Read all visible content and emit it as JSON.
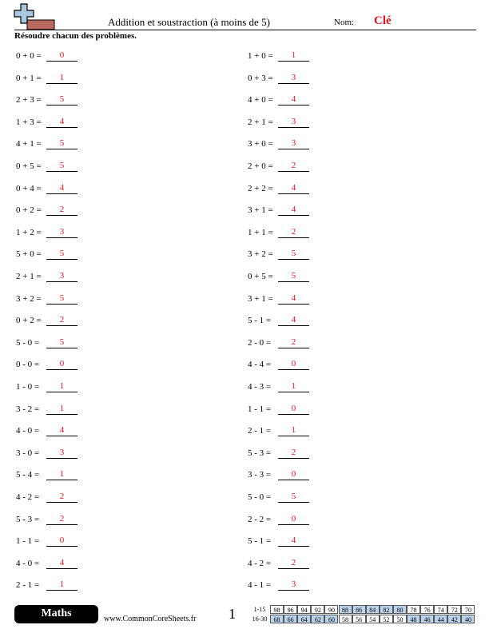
{
  "header": {
    "title": "Addition et soustraction (à moins de 5)",
    "name_label": "Nom:",
    "name_value": "Clé"
  },
  "instructions": "Résoudre chacun des problèmes.",
  "columns": [
    [
      {
        "question": "0 + 0 =",
        "answer": "0"
      },
      {
        "question": "0 + 1 =",
        "answer": "1"
      },
      {
        "question": "2 + 3 =",
        "answer": "5"
      },
      {
        "question": "1 + 3 =",
        "answer": "4"
      },
      {
        "question": "4 + 1 =",
        "answer": "5"
      },
      {
        "question": "0 + 5 =",
        "answer": "5"
      },
      {
        "question": "0 + 4 =",
        "answer": "4"
      },
      {
        "question": "0 + 2 =",
        "answer": "2"
      },
      {
        "question": "1 + 2 =",
        "answer": "3"
      },
      {
        "question": "5 + 0 =",
        "answer": "5"
      },
      {
        "question": "2 + 1 =",
        "answer": "3"
      },
      {
        "question": "3 + 2 =",
        "answer": "5"
      },
      {
        "question": "0 + 2 =",
        "answer": "2"
      },
      {
        "question": "5 - 0 =",
        "answer": "5"
      },
      {
        "question": "0 - 0 =",
        "answer": "0"
      },
      {
        "question": "1 - 0 =",
        "answer": "1"
      },
      {
        "question": "3 - 2 =",
        "answer": "1"
      },
      {
        "question": "4 - 0 =",
        "answer": "4"
      },
      {
        "question": "3 - 0 =",
        "answer": "3"
      },
      {
        "question": "5 - 4 =",
        "answer": "1"
      },
      {
        "question": "4 - 2 =",
        "answer": "2"
      },
      {
        "question": "5 - 3 =",
        "answer": "2"
      },
      {
        "question": "1 - 1 =",
        "answer": "0"
      },
      {
        "question": "4 - 0 =",
        "answer": "4"
      },
      {
        "question": "2 - 1 =",
        "answer": "1"
      }
    ],
    [
      {
        "question": "1 + 0 =",
        "answer": "1"
      },
      {
        "question": "0 + 3 =",
        "answer": "3"
      },
      {
        "question": "4 + 0 =",
        "answer": "4"
      },
      {
        "question": "2 + 1 =",
        "answer": "3"
      },
      {
        "question": "3 + 0 =",
        "answer": "3"
      },
      {
        "question": "2 + 0 =",
        "answer": "2"
      },
      {
        "question": "2 + 2 =",
        "answer": "4"
      },
      {
        "question": "3 + 1 =",
        "answer": "4"
      },
      {
        "question": "1 + 1 =",
        "answer": "2"
      },
      {
        "question": "3 + 2 =",
        "answer": "5"
      },
      {
        "question": "0 + 5 =",
        "answer": "5"
      },
      {
        "question": "3 + 1 =",
        "answer": "4"
      },
      {
        "question": "5 - 1 =",
        "answer": "4"
      },
      {
        "question": "2 - 0 =",
        "answer": "2"
      },
      {
        "question": "4 - 4 =",
        "answer": "0"
      },
      {
        "question": "4 - 3 =",
        "answer": "1"
      },
      {
        "question": "1 - 1 =",
        "answer": "0"
      },
      {
        "question": "2 - 1 =",
        "answer": "1"
      },
      {
        "question": "5 - 3 =",
        "answer": "2"
      },
      {
        "question": "3 - 3 =",
        "answer": "0"
      },
      {
        "question": "5 - 0 =",
        "answer": "5"
      },
      {
        "question": "2 - 2 =",
        "answer": "0"
      },
      {
        "question": "5 - 1 =",
        "answer": "4"
      },
      {
        "question": "4 - 2 =",
        "answer": "2"
      },
      {
        "question": "4 - 1 =",
        "answer": "3"
      }
    ]
  ],
  "footer": {
    "subject": "Maths",
    "website": "www.CommonCoreSheets.fr",
    "page": "1",
    "score_table": [
      {
        "range": "1-15",
        "scores": [
          "98",
          "96",
          "94",
          "92",
          "90",
          "88",
          "86",
          "84",
          "82",
          "80",
          "78",
          "76",
          "74",
          "72",
          "70"
        ]
      },
      {
        "range": "16-30",
        "scores": [
          "68",
          "66",
          "64",
          "62",
          "60",
          "58",
          "56",
          "54",
          "52",
          "50",
          "48",
          "46",
          "44",
          "42",
          "40"
        ]
      }
    ]
  }
}
